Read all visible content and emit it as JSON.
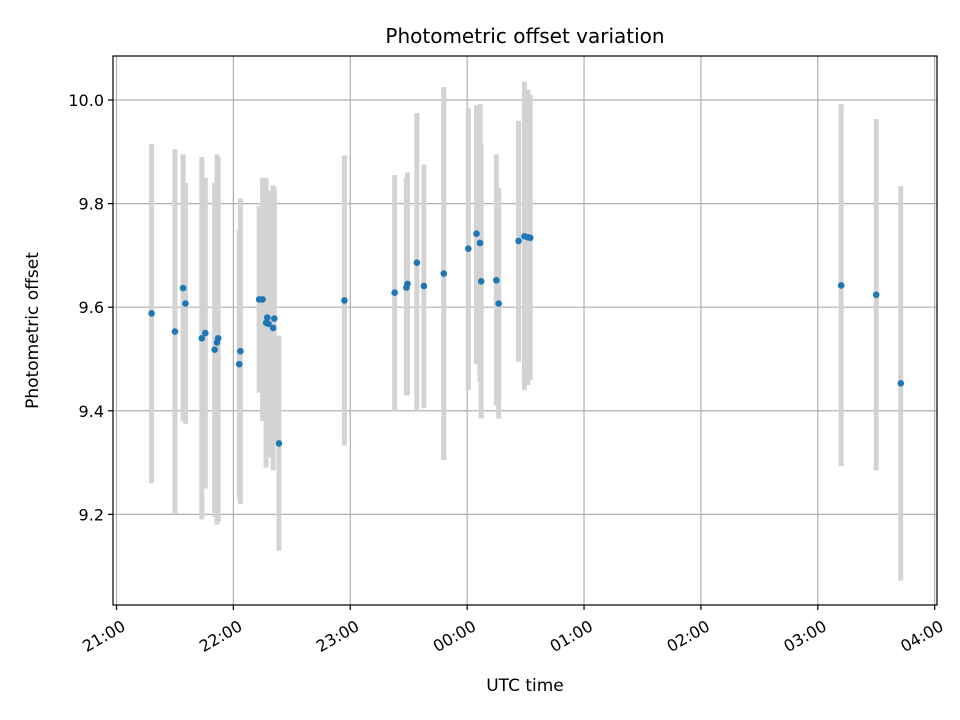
{
  "chart_data": {
    "type": "scatter",
    "title": "Photometric offset variation",
    "xlabel": "UTC time",
    "ylabel": "Photometric offset",
    "x_unit": "hours since 21:00 UTC",
    "xlim": [
      -0.03,
      7.02
    ],
    "ylim": [
      9.025,
      10.085
    ],
    "x_ticks": [
      {
        "v": 0,
        "label": "21:00"
      },
      {
        "v": 1,
        "label": "22:00"
      },
      {
        "v": 2,
        "label": "23:00"
      },
      {
        "v": 3,
        "label": "00:00"
      },
      {
        "v": 4,
        "label": "01:00"
      },
      {
        "v": 5,
        "label": "02:00"
      },
      {
        "v": 6,
        "label": "03:00"
      },
      {
        "v": 7,
        "label": "04:00"
      }
    ],
    "y_ticks": [
      {
        "v": 9.2,
        "label": "9.2"
      },
      {
        "v": 9.4,
        "label": "9.4"
      },
      {
        "v": 9.6,
        "label": "9.6"
      },
      {
        "v": 9.8,
        "label": "9.8"
      },
      {
        "v": 10.0,
        "label": "10.0"
      }
    ],
    "grid": true,
    "colors": {
      "point": "#1f77b4",
      "errorbar": "#d3d3d3",
      "grid": "#b0b0b0"
    },
    "points": [
      {
        "x": 0.3,
        "y": 9.588,
        "lo": 9.26,
        "hi": 9.915
      },
      {
        "x": 0.5,
        "y": 9.553,
        "lo": 9.2,
        "hi": 9.905
      },
      {
        "x": 0.57,
        "y": 9.637,
        "lo": 9.38,
        "hi": 9.895
      },
      {
        "x": 0.59,
        "y": 9.607,
        "lo": 9.375,
        "hi": 9.84
      },
      {
        "x": 0.73,
        "y": 9.54,
        "lo": 9.19,
        "hi": 9.89
      },
      {
        "x": 0.76,
        "y": 9.55,
        "lo": 9.25,
        "hi": 9.85
      },
      {
        "x": 0.84,
        "y": 9.518,
        "lo": 9.195,
        "hi": 9.84
      },
      {
        "x": 0.86,
        "y": 9.532,
        "lo": 9.18,
        "hi": 9.895
      },
      {
        "x": 0.87,
        "y": 9.54,
        "lo": 9.185,
        "hi": 9.89
      },
      {
        "x": 1.05,
        "y": 9.49,
        "lo": 9.23,
        "hi": 9.75
      },
      {
        "x": 1.06,
        "y": 9.515,
        "lo": 9.22,
        "hi": 9.81
      },
      {
        "x": 1.22,
        "y": 9.615,
        "lo": 9.435,
        "hi": 9.795
      },
      {
        "x": 1.25,
        "y": 9.615,
        "lo": 9.38,
        "hi": 9.85
      },
      {
        "x": 1.28,
        "y": 9.57,
        "lo": 9.29,
        "hi": 9.85
      },
      {
        "x": 1.29,
        "y": 9.58,
        "lo": 9.33,
        "hi": 9.825
      },
      {
        "x": 1.3,
        "y": 9.568,
        "lo": 9.31,
        "hi": 9.825
      },
      {
        "x": 1.34,
        "y": 9.56,
        "lo": 9.285,
        "hi": 9.835
      },
      {
        "x": 1.35,
        "y": 9.578,
        "lo": 9.34,
        "hi": 9.83
      },
      {
        "x": 1.39,
        "y": 9.337,
        "lo": 9.13,
        "hi": 9.545
      },
      {
        "x": 1.95,
        "y": 9.613,
        "lo": 9.333,
        "hi": 9.893
      },
      {
        "x": 2.38,
        "y": 9.628,
        "lo": 9.4,
        "hi": 9.855
      },
      {
        "x": 2.48,
        "y": 9.638,
        "lo": 9.43,
        "hi": 9.85
      },
      {
        "x": 2.49,
        "y": 9.645,
        "lo": 9.43,
        "hi": 9.86
      },
      {
        "x": 2.57,
        "y": 9.686,
        "lo": 9.4,
        "hi": 9.975
      },
      {
        "x": 2.63,
        "y": 9.641,
        "lo": 9.405,
        "hi": 9.875
      },
      {
        "x": 2.8,
        "y": 9.665,
        "lo": 9.305,
        "hi": 10.025
      },
      {
        "x": 3.01,
        "y": 9.713,
        "lo": 9.44,
        "hi": 9.985
      },
      {
        "x": 3.08,
        "y": 9.742,
        "lo": 9.49,
        "hi": 9.99
      },
      {
        "x": 3.11,
        "y": 9.724,
        "lo": 9.455,
        "hi": 9.992
      },
      {
        "x": 3.12,
        "y": 9.65,
        "lo": 9.385,
        "hi": 9.915
      },
      {
        "x": 3.25,
        "y": 9.652,
        "lo": 9.41,
        "hi": 9.895
      },
      {
        "x": 3.27,
        "y": 9.607,
        "lo": 9.385,
        "hi": 9.83
      },
      {
        "x": 3.44,
        "y": 9.728,
        "lo": 9.495,
        "hi": 9.96
      },
      {
        "x": 3.49,
        "y": 9.737,
        "lo": 9.44,
        "hi": 10.035
      },
      {
        "x": 3.52,
        "y": 9.735,
        "lo": 9.45,
        "hi": 10.02
      },
      {
        "x": 3.54,
        "y": 9.734,
        "lo": 9.46,
        "hi": 10.01
      },
      {
        "x": 6.2,
        "y": 9.642,
        "lo": 9.293,
        "hi": 9.992
      },
      {
        "x": 6.5,
        "y": 9.624,
        "lo": 9.285,
        "hi": 9.963
      },
      {
        "x": 6.71,
        "y": 9.453,
        "lo": 9.072,
        "hi": 9.834
      }
    ]
  }
}
